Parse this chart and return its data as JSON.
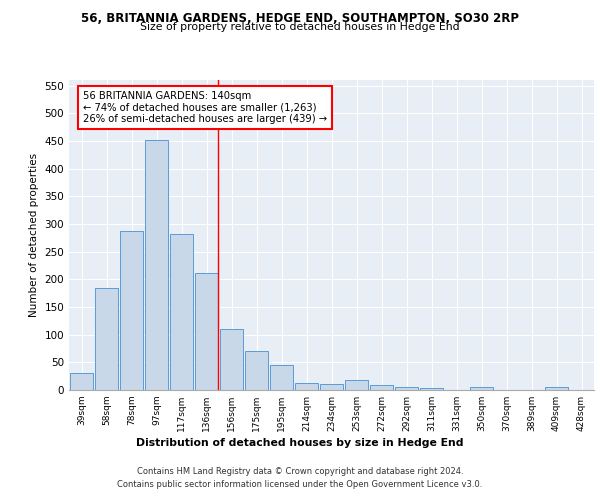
{
  "title1": "56, BRITANNIA GARDENS, HEDGE END, SOUTHAMPTON, SO30 2RP",
  "title2": "Size of property relative to detached houses in Hedge End",
  "xlabel": "Distribution of detached houses by size in Hedge End",
  "ylabel": "Number of detached properties",
  "categories": [
    "39sqm",
    "58sqm",
    "78sqm",
    "97sqm",
    "117sqm",
    "136sqm",
    "156sqm",
    "175sqm",
    "195sqm",
    "214sqm",
    "234sqm",
    "253sqm",
    "272sqm",
    "292sqm",
    "311sqm",
    "331sqm",
    "350sqm",
    "370sqm",
    "389sqm",
    "409sqm",
    "428sqm"
  ],
  "values": [
    30,
    185,
    287,
    452,
    282,
    211,
    110,
    70,
    46,
    13,
    10,
    18,
    9,
    5,
    4,
    0,
    6,
    0,
    0,
    5,
    0
  ],
  "bar_color": "#c8d8e8",
  "bar_edge_color": "#5b9bd5",
  "annotation_text": "56 BRITANNIA GARDENS: 140sqm\n← 74% of detached houses are smaller (1,263)\n26% of semi-detached houses are larger (439) →",
  "ylim": [
    0,
    560
  ],
  "yticks": [
    0,
    50,
    100,
    150,
    200,
    250,
    300,
    350,
    400,
    450,
    500,
    550
  ],
  "footnote": "Contains HM Land Registry data © Crown copyright and database right 2024.\nContains public sector information licensed under the Open Government Licence v3.0.",
  "plot_bg_color": "#e8eef5",
  "line_x_index": 5.47
}
